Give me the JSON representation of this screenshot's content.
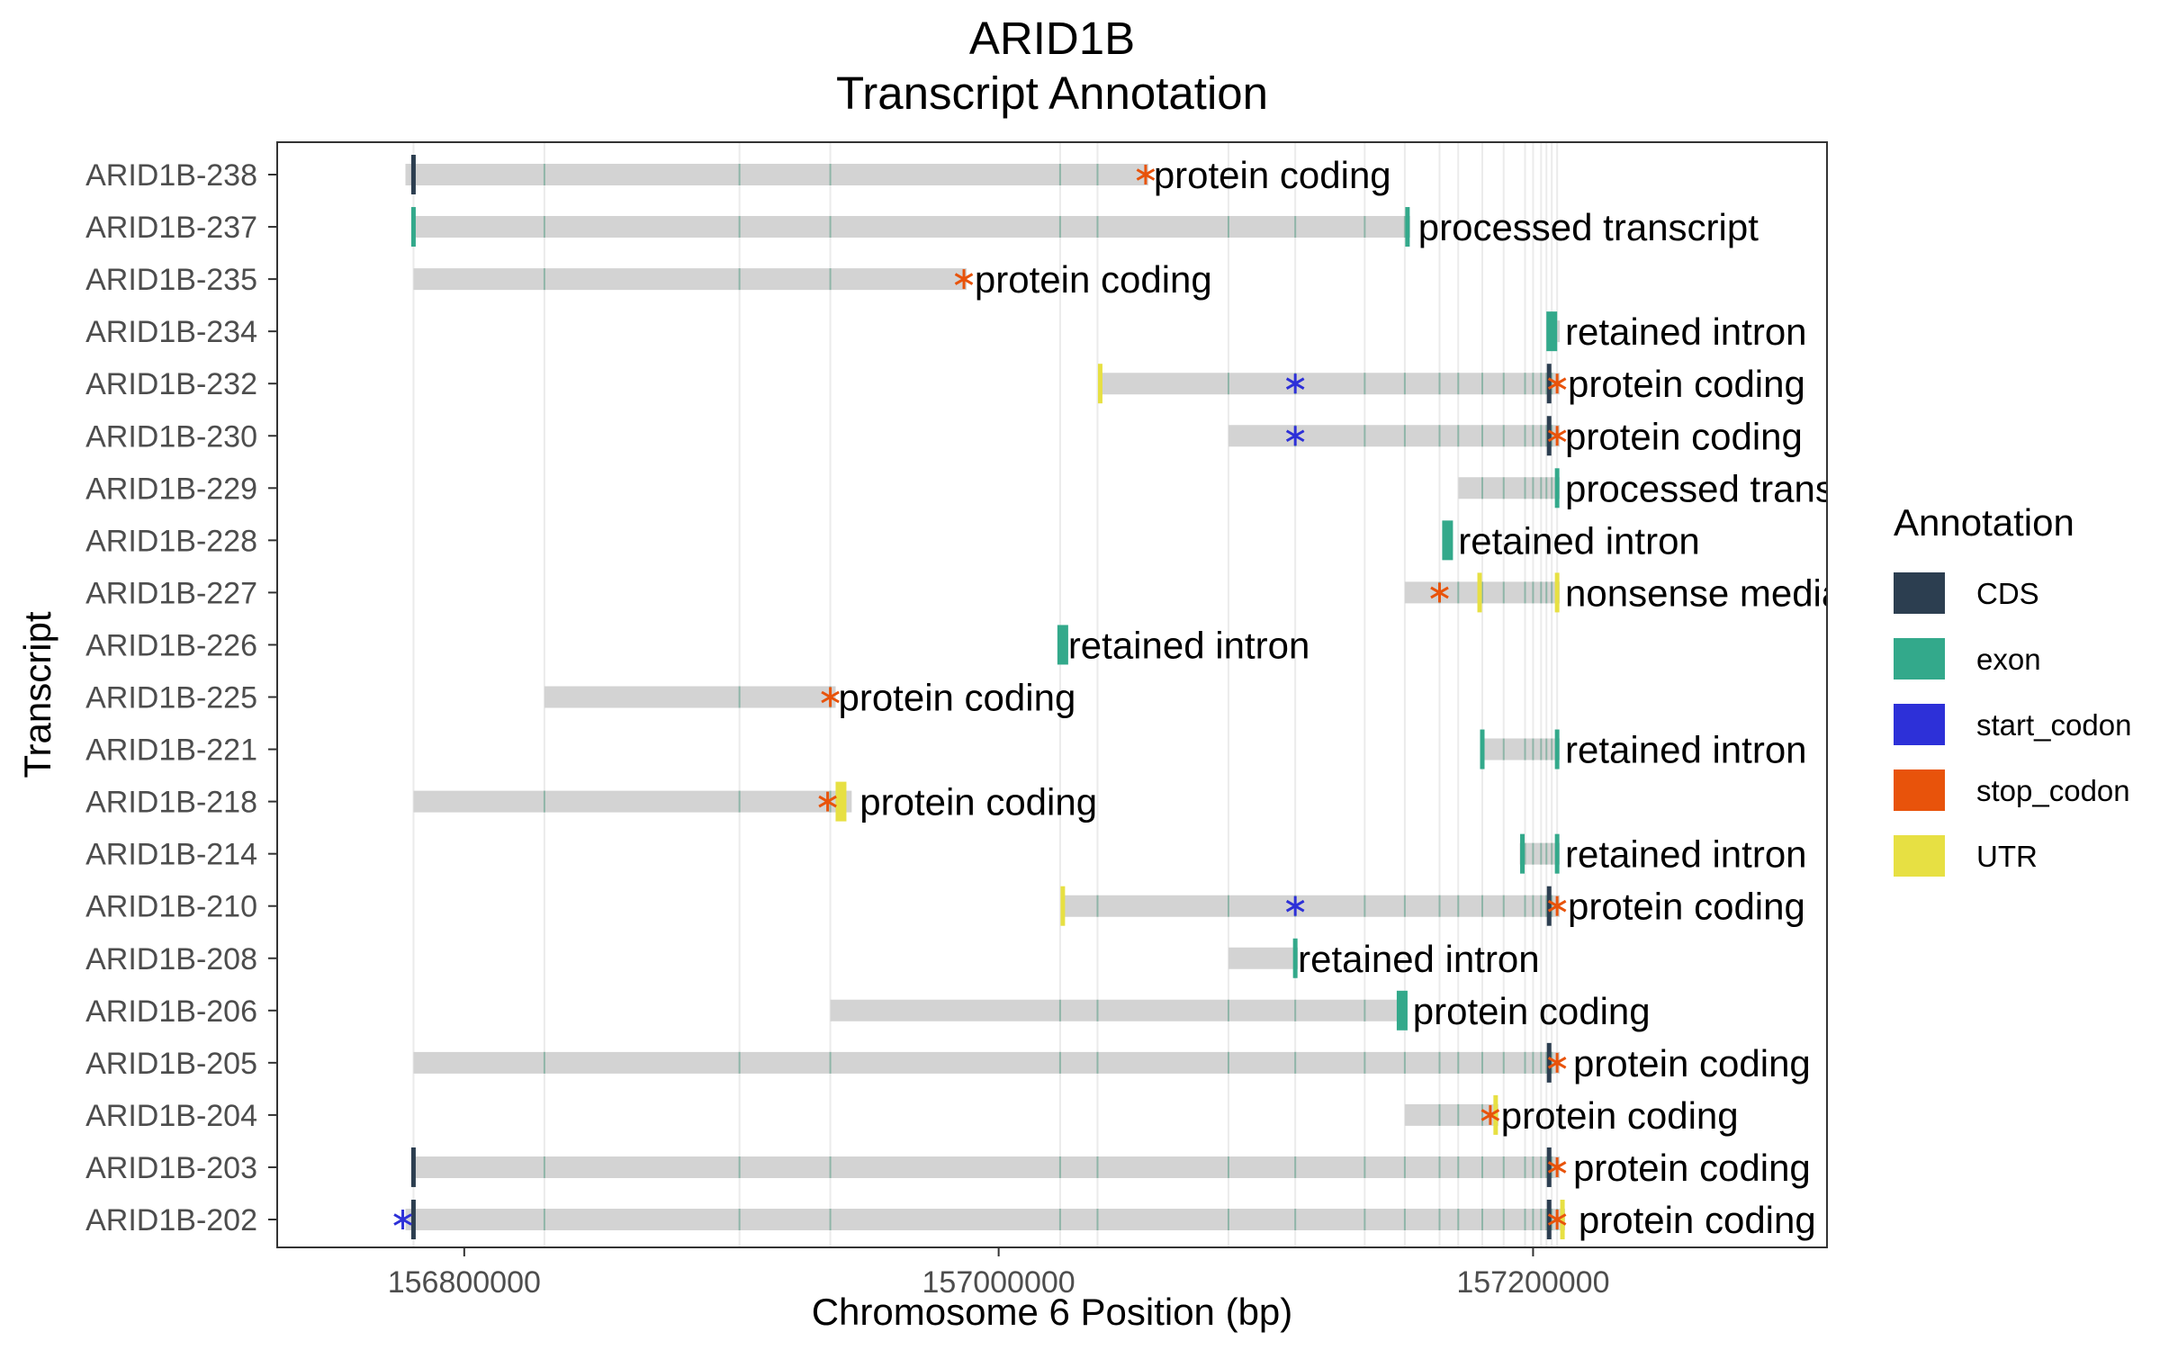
{
  "chart_data": {
    "type": "gene-track",
    "title_line1": "ARID1B",
    "title_line2": "Transcript Annotation",
    "xlabel": "Chromosome 6 Position (bp)",
    "ylabel": "Transcript",
    "xlim": [
      156730000,
      157310000
    ],
    "xticks": [
      156800000,
      157000000,
      157200000
    ],
    "xtick_labels": [
      "156800000",
      "157000000",
      "157200000"
    ],
    "grid": true,
    "legend_title": "Annotation",
    "legend_position": "right",
    "legend": [
      {
        "key": "CDS",
        "label": "CDS",
        "color": "#2c3e50"
      },
      {
        "key": "exon",
        "label": "exon",
        "color": "#33a98b"
      },
      {
        "key": "start_codon",
        "label": "start_codon",
        "color": "#2d30d8"
      },
      {
        "key": "stop_codon",
        "label": "stop_codon",
        "color": "#e8530b"
      },
      {
        "key": "UTR",
        "label": "UTR",
        "color": "#e7e043"
      }
    ],
    "intron_color": "#d3d3d3",
    "exon_positions": [
      156781000,
      156830000,
      156903000,
      156937000,
      157023000,
      157037000,
      157086000,
      157111000,
      157137000,
      157152000,
      157165000,
      157172000,
      157181000,
      157189000,
      157197000,
      157200000,
      157203000,
      157205000,
      157207000,
      157209000
    ],
    "transcripts": [
      {
        "name": "ARID1B-238",
        "biotype": "protein coding",
        "start": 156778000,
        "end": 157056000,
        "label_x": 157058000,
        "features": [
          {
            "type": "CDS",
            "pos": 156781000
          },
          {
            "type": "stop_codon",
            "pos": 157055000
          }
        ]
      },
      {
        "name": "ARID1B-237",
        "biotype": "processed transcript",
        "start": 156781000,
        "end": 157154000,
        "label_x": 157157000,
        "features": [
          {
            "type": "exon",
            "pos": 156781000
          },
          {
            "type": "exon",
            "pos": 157153000
          }
        ]
      },
      {
        "name": "ARID1B-235",
        "biotype": "protein coding",
        "start": 156781000,
        "end": 156988000,
        "label_x": 156991000,
        "features": [
          {
            "type": "stop_codon",
            "pos": 156987000
          }
        ]
      },
      {
        "name": "ARID1B-234",
        "biotype": "retained intron",
        "start": 157205000,
        "end": 157210000,
        "label_x": 157212000,
        "features": [
          {
            "type": "exon",
            "pos": 157207000,
            "wide": true
          }
        ]
      },
      {
        "name": "ARID1B-232",
        "biotype": "protein coding",
        "start": 157038000,
        "end": 157210000,
        "label_x": 157213000,
        "features": [
          {
            "type": "UTR",
            "pos": 157038000
          },
          {
            "type": "start_codon",
            "pos": 157111000
          },
          {
            "type": "CDS",
            "pos": 157206000
          },
          {
            "type": "stop_codon",
            "pos": 157209000
          }
        ]
      },
      {
        "name": "ARID1B-230",
        "biotype": "protein coding",
        "start": 157086000,
        "end": 157210000,
        "label_x": 157212000,
        "features": [
          {
            "type": "start_codon",
            "pos": 157111000
          },
          {
            "type": "CDS",
            "pos": 157206000
          },
          {
            "type": "stop_codon",
            "pos": 157209000
          }
        ]
      },
      {
        "name": "ARID1B-229",
        "biotype": "processed transcript",
        "start": 157172000,
        "end": 157210000,
        "label_x": 157212000,
        "features": [
          {
            "type": "exon",
            "pos": 157209000
          }
        ]
      },
      {
        "name": "ARID1B-228",
        "biotype": "retained intron",
        "start": 157166000,
        "end": 157170000,
        "label_x": 157172000,
        "features": [
          {
            "type": "exon",
            "pos": 157168000,
            "wide": true
          }
        ]
      },
      {
        "name": "ARID1B-227",
        "biotype": "nonsense mediated decay",
        "start": 157152000,
        "end": 157210000,
        "label_x": 157212000,
        "features": [
          {
            "type": "stop_codon",
            "pos": 157165000
          },
          {
            "type": "UTR",
            "pos": 157180000
          },
          {
            "type": "UTR",
            "pos": 157209000
          }
        ]
      },
      {
        "name": "ARID1B-226",
        "biotype": "retained intron",
        "start": 157023000,
        "end": 157026000,
        "label_x": 157026000,
        "features": [
          {
            "type": "exon",
            "pos": 157024000,
            "wide": true
          }
        ]
      },
      {
        "name": "ARID1B-225",
        "biotype": "protein coding",
        "start": 156830000,
        "end": 156939000,
        "label_x": 156940000,
        "features": [
          {
            "type": "stop_codon",
            "pos": 156937000
          }
        ]
      },
      {
        "name": "ARID1B-221",
        "biotype": "retained intron",
        "start": 157181000,
        "end": 157210000,
        "label_x": 157212000,
        "features": [
          {
            "type": "exon",
            "pos": 157181000
          },
          {
            "type": "exon",
            "pos": 157209000
          }
        ]
      },
      {
        "name": "ARID1B-218",
        "biotype": "protein coding",
        "start": 156781000,
        "end": 156945000,
        "label_x": 156948000,
        "features": [
          {
            "type": "UTR",
            "pos": 156941000,
            "wide": true
          },
          {
            "type": "stop_codon",
            "pos": 156936000
          }
        ]
      },
      {
        "name": "ARID1B-214",
        "biotype": "retained intron",
        "start": 157195000,
        "end": 157210000,
        "label_x": 157212000,
        "features": [
          {
            "type": "exon",
            "pos": 157196000
          },
          {
            "type": "exon",
            "pos": 157209000
          }
        ]
      },
      {
        "name": "ARID1B-210",
        "biotype": "protein coding",
        "start": 157024000,
        "end": 157210000,
        "label_x": 157213000,
        "features": [
          {
            "type": "UTR",
            "pos": 157024000
          },
          {
            "type": "start_codon",
            "pos": 157111000
          },
          {
            "type": "CDS",
            "pos": 157206000
          },
          {
            "type": "stop_codon",
            "pos": 157209000
          }
        ]
      },
      {
        "name": "ARID1B-208",
        "biotype": "retained intron",
        "start": 157086000,
        "end": 157112000,
        "label_x": 157112000,
        "features": [
          {
            "type": "exon",
            "pos": 157111000
          }
        ]
      },
      {
        "name": "ARID1B-206",
        "biotype": "protein coding",
        "start": 156937000,
        "end": 157153000,
        "label_x": 157155000,
        "features": [
          {
            "type": "exon",
            "pos": 157151000,
            "wide": true
          }
        ]
      },
      {
        "name": "ARID1B-205",
        "biotype": "protein coding",
        "start": 156781000,
        "end": 157210000,
        "label_x": 157215000,
        "features": [
          {
            "type": "CDS",
            "pos": 157206000
          },
          {
            "type": "stop_codon",
            "pos": 157209000
          }
        ]
      },
      {
        "name": "ARID1B-204",
        "biotype": "protein coding",
        "start": 157152000,
        "end": 157187000,
        "label_x": 157188000,
        "features": [
          {
            "type": "UTR",
            "pos": 157186000
          },
          {
            "type": "stop_codon",
            "pos": 157184000
          }
        ]
      },
      {
        "name": "ARID1B-203",
        "biotype": "protein coding",
        "start": 156781000,
        "end": 157210000,
        "label_x": 157215000,
        "features": [
          {
            "type": "CDS",
            "pos": 156781000
          },
          {
            "type": "CDS",
            "pos": 157206000
          },
          {
            "type": "stop_codon",
            "pos": 157209000
          }
        ]
      },
      {
        "name": "ARID1B-202",
        "biotype": "protein coding",
        "start": 156778000,
        "end": 157212000,
        "label_x": 157217000,
        "features": [
          {
            "type": "start_codon",
            "pos": 156777000
          },
          {
            "type": "CDS",
            "pos": 156781000
          },
          {
            "type": "UTR",
            "pos": 157211000
          },
          {
            "type": "CDS",
            "pos": 157206000
          },
          {
            "type": "stop_codon",
            "pos": 157209000
          }
        ]
      }
    ]
  }
}
